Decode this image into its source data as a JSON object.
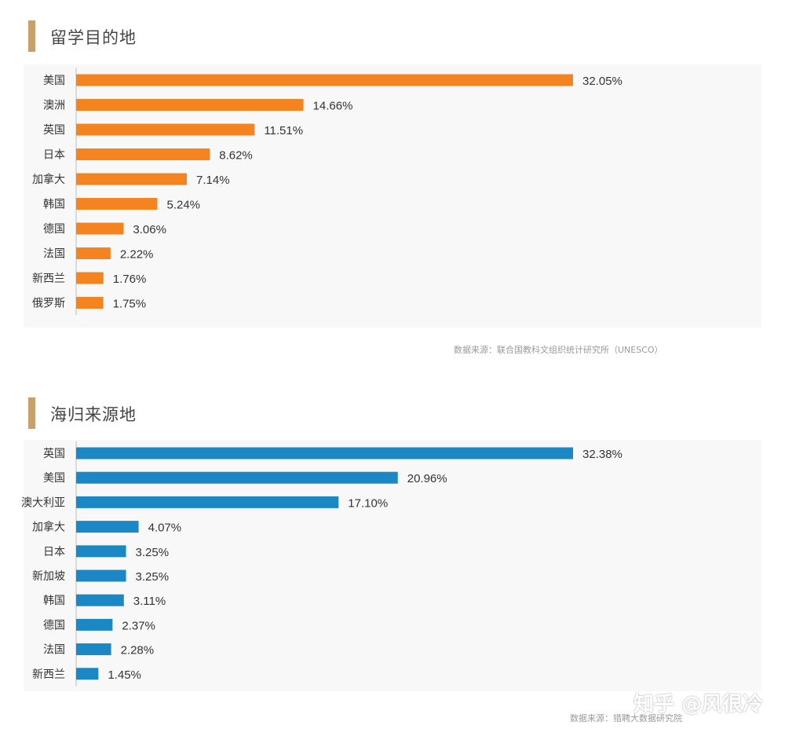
{
  "chart_data": [
    {
      "type": "bar",
      "orientation": "horizontal",
      "title": "留学目的地",
      "categories": [
        "美国",
        "澳洲",
        "英国",
        "日本",
        "加拿大",
        "韩国",
        "德国",
        "法国",
        "新西兰",
        "俄罗斯"
      ],
      "values": [
        32.05,
        14.66,
        11.51,
        8.62,
        7.14,
        5.24,
        3.06,
        2.22,
        1.76,
        1.75
      ],
      "value_labels": [
        "32.05%",
        "14.66%",
        "11.51%",
        "8.62%",
        "7.14%",
        "5.24%",
        "3.06%",
        "2.22%",
        "1.76%",
        "1.75%"
      ],
      "color": "#f5831f",
      "source": "数据来源：联合国教科文组织统计研究所（UNESCO）"
    },
    {
      "type": "bar",
      "orientation": "horizontal",
      "title": "海归来源地",
      "categories": [
        "英国",
        "美国",
        "澳大利亚",
        "加拿大",
        "日本",
        "新加坡",
        "韩国",
        "德国",
        "法国",
        "新西兰"
      ],
      "values": [
        32.38,
        20.96,
        17.1,
        4.07,
        3.25,
        3.25,
        3.11,
        2.37,
        2.28,
        1.45
      ],
      "value_labels": [
        "32.38%",
        "20.96%",
        "17.10%",
        "4.07%",
        "3.25%",
        "3.25%",
        "3.11%",
        "2.37%",
        "2.28%",
        "1.45%"
      ],
      "color": "#1b87c5",
      "source": "数据来源：猎聘大数据研究院"
    }
  ],
  "watermark": "知乎 @风很冷"
}
